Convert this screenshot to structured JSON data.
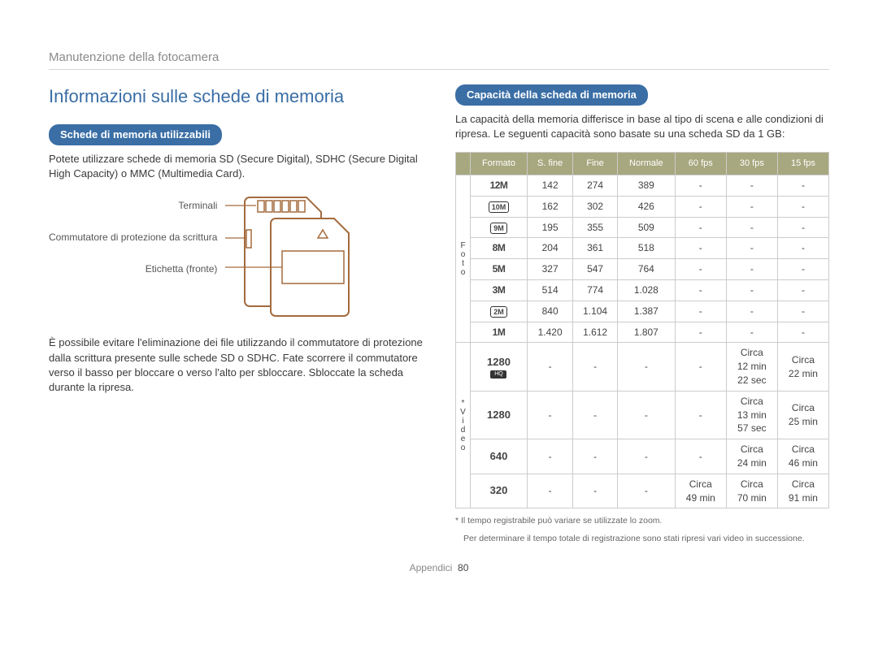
{
  "breadcrumb": "Manutenzione della fotocamera",
  "left": {
    "title": "Informazioni sulle schede di memoria",
    "pill": "Schede di memoria utilizzabili",
    "intro": "Potete utilizzare schede di memoria SD (Secure Digital), SDHC (Secure Digital High Capacity) o MMC (Multimedia Card).",
    "labels": {
      "terminals": "Terminali",
      "lock": "Commutatore di protezione da scrittura",
      "label": "Etichetta (fronte)"
    },
    "para2": "È possibile evitare l'eliminazione dei file utilizzando il commutatore di protezione dalla scrittura presente sulle schede SD o SDHC. Fate scorrere il commutatore verso il basso per bloccare o verso l'alto per sbloccare. Sbloccate la scheda durante la ripresa."
  },
  "right": {
    "pill": "Capacità della scheda di memoria",
    "intro": "La capacità della memoria differisce in base al tipo di scena e alle condizioni di ripresa. Le seguenti capacità sono basate su una scheda SD da 1 GB:",
    "headers": [
      "Formato",
      "S. fine",
      "Fine",
      "Normale",
      "60 fps",
      "30 fps",
      "15 fps"
    ],
    "side_foto": "F\no\nt\no",
    "side_video": "*\nV\ni\nd\ne\no",
    "foto_rows": [
      {
        "fmt": "12M",
        "style": "plain",
        "cells": [
          "142",
          "274",
          "389",
          "-",
          "-",
          "-"
        ]
      },
      {
        "fmt": "10M",
        "style": "box",
        "cells": [
          "162",
          "302",
          "426",
          "-",
          "-",
          "-"
        ]
      },
      {
        "fmt": "9M",
        "style": "box",
        "cells": [
          "195",
          "355",
          "509",
          "-",
          "-",
          "-"
        ]
      },
      {
        "fmt": "8M",
        "style": "plain",
        "cells": [
          "204",
          "361",
          "518",
          "-",
          "-",
          "-"
        ]
      },
      {
        "fmt": "5M",
        "style": "plain",
        "cells": [
          "327",
          "547",
          "764",
          "-",
          "-",
          "-"
        ]
      },
      {
        "fmt": "3M",
        "style": "plain",
        "cells": [
          "514",
          "774",
          "1.028",
          "-",
          "-",
          "-"
        ]
      },
      {
        "fmt": "2M",
        "style": "box",
        "cells": [
          "840",
          "1.104",
          "1.387",
          "-",
          "-",
          "-"
        ]
      },
      {
        "fmt": "1M",
        "style": "plain",
        "cells": [
          "1.420",
          "1.612",
          "1.807",
          "-",
          "-",
          "-"
        ]
      }
    ],
    "video_rows": [
      {
        "fmt": "1280",
        "hq": true,
        "cells": [
          "-",
          "-",
          "-",
          "-",
          "Circa 12 min 22 sec",
          "Circa 22 min"
        ]
      },
      {
        "fmt": "1280",
        "hq": false,
        "cells": [
          "-",
          "-",
          "-",
          "-",
          "Circa 13 min 57 sec",
          "Circa 25 min"
        ]
      },
      {
        "fmt": "640",
        "hq": false,
        "cells": [
          "-",
          "-",
          "-",
          "-",
          "Circa 24 min",
          "Circa 46 min"
        ]
      },
      {
        "fmt": "320",
        "hq": false,
        "cells": [
          "-",
          "-",
          "-",
          "Circa 49 min",
          "Circa 70 min",
          "Circa 91 min"
        ]
      }
    ],
    "footnote1": "* Il tempo registrabile può variare se utilizzate lo zoom.",
    "footnote2": "Per determinare il tempo totale di registrazione sono stati ripresi vari video in successione."
  },
  "footer": {
    "section": "Appendici",
    "page": "80"
  }
}
